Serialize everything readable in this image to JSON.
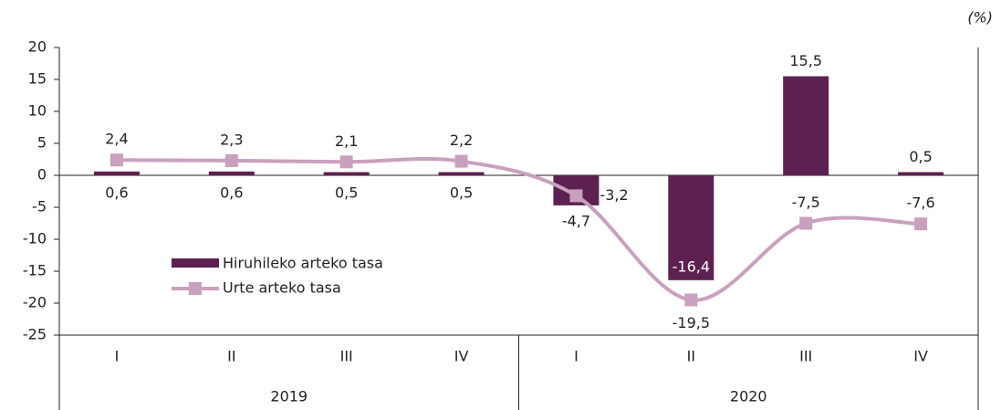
{
  "chart_data": {
    "type": "bar_line",
    "annotation": "(%)",
    "categories": [
      "I",
      "II",
      "III",
      "IV",
      "I",
      "II",
      "III",
      "IV"
    ],
    "groups": [
      "2019",
      "2020"
    ],
    "ylim": [
      -25,
      20
    ],
    "yticks": [
      20,
      15,
      10,
      5,
      0,
      -5,
      -10,
      -15,
      -20,
      -25
    ],
    "series": [
      {
        "name": "Hiruhileko arteko tasa",
        "type": "bar",
        "color": "#5c2150",
        "values": [
          0.6,
          0.6,
          0.5,
          0.5,
          -4.7,
          -16.4,
          15.5,
          0.5
        ],
        "value_labels": [
          "0,6",
          "0,6",
          "0,5",
          "0,5",
          "-4,7",
          "-16,4",
          "15,5",
          "0,5"
        ]
      },
      {
        "name": "Urte arteko tasa",
        "type": "line",
        "color": "#c9a0bd",
        "values": [
          2.4,
          2.3,
          2.1,
          2.2,
          -3.2,
          -19.5,
          -7.5,
          -7.6
        ],
        "value_labels": [
          "2,4",
          "2,3",
          "2,1",
          "2,2",
          "-3,2",
          "-19,5",
          "-7,5",
          "-7,6"
        ]
      }
    ],
    "legend": "center-left"
  }
}
